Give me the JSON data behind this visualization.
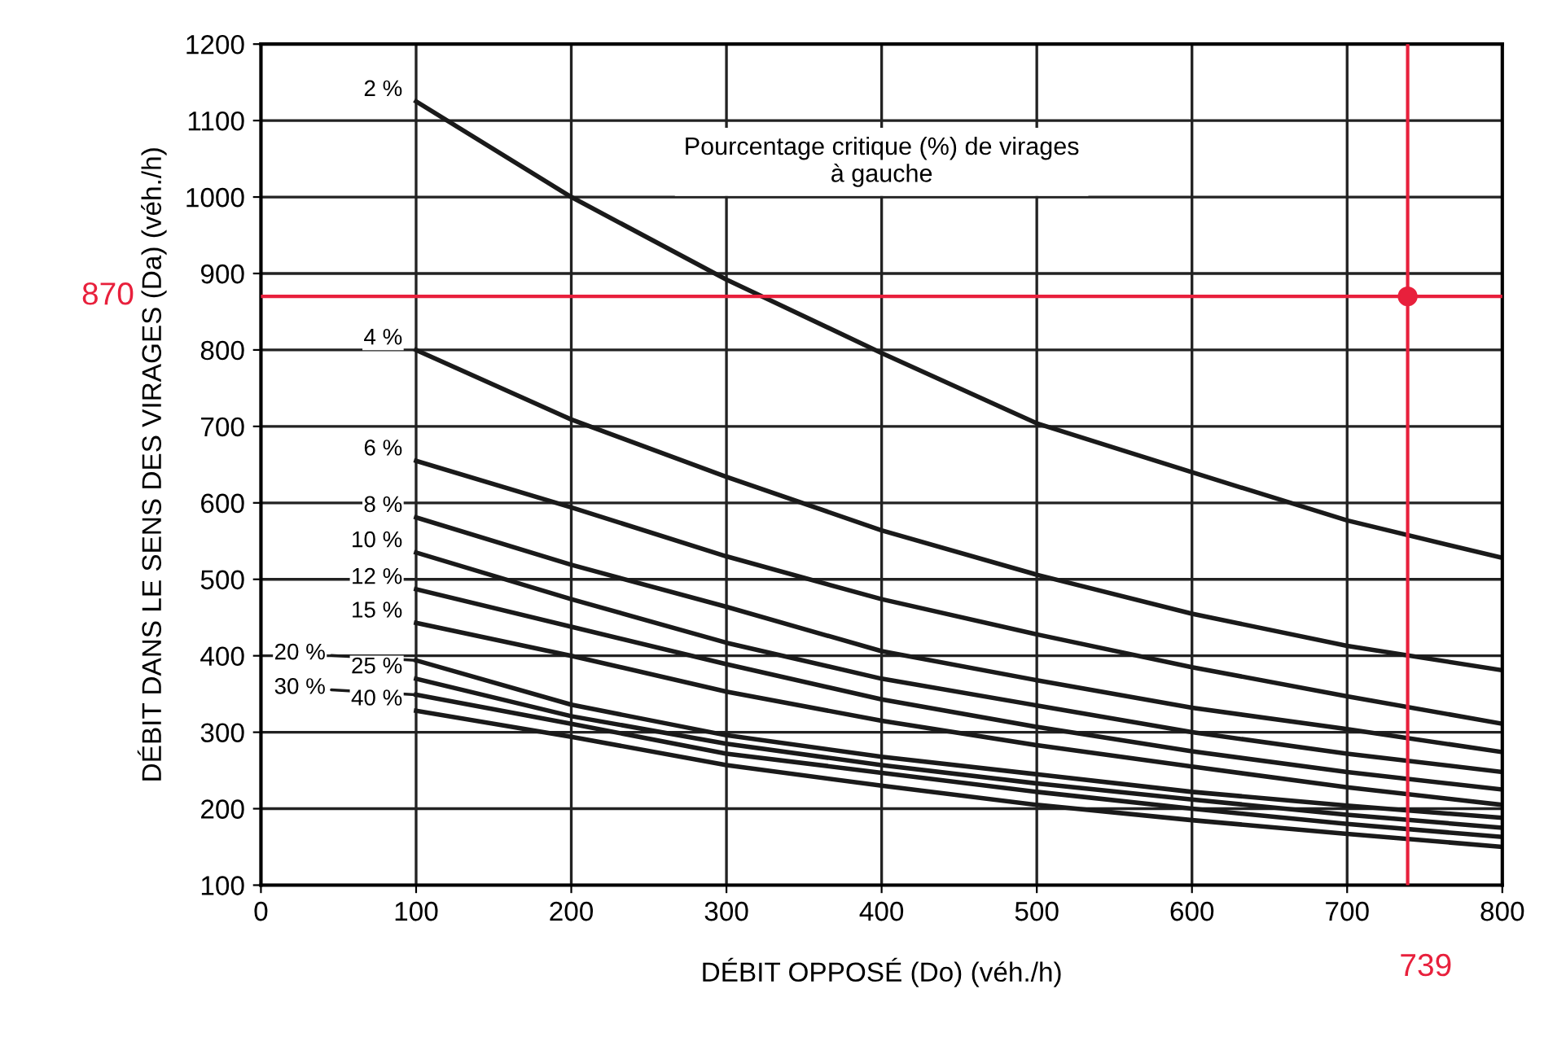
{
  "chart_data": {
    "type": "line",
    "xlabel": "DÉBIT OPPOSÉ (Do) (véh./h)",
    "ylabel": "DÉBIT DANS LE SENS DES VIRAGES (Da) (véh./h)",
    "x": [
      100,
      200,
      300,
      400,
      500,
      600,
      700,
      800
    ],
    "series": [
      {
        "name": "2 %",
        "color": "#1a1a1a",
        "values": [
          1125,
          1000,
          892,
          796,
          704,
          640,
          577,
          528
        ]
      },
      {
        "name": "4 %",
        "color": "#1a1a1a",
        "values": [
          800,
          709,
          634,
          564,
          506,
          455,
          413,
          381
        ]
      },
      {
        "name": "6 %",
        "color": "#1a1a1a",
        "values": [
          655,
          594,
          530,
          474,
          428,
          385,
          347,
          311
        ]
      },
      {
        "name": "8 %",
        "color": "#1a1a1a",
        "values": [
          581,
          519,
          464,
          406,
          368,
          332,
          304,
          274
        ]
      },
      {
        "name": "10 %",
        "color": "#1a1a1a",
        "values": [
          535,
          474,
          417,
          370,
          335,
          300,
          272,
          248
        ]
      },
      {
        "name": "12 %",
        "color": "#1a1a1a",
        "values": [
          487,
          438,
          389,
          343,
          307,
          275,
          248,
          225
        ]
      },
      {
        "name": "15 %",
        "color": "#1a1a1a",
        "values": [
          443,
          400,
          353,
          315,
          283,
          255,
          228,
          205
        ]
      },
      {
        "name": "20 %",
        "color": "#1a1a1a",
        "values": [
          394,
          336,
          296,
          268,
          245,
          222,
          204,
          188
        ]
      },
      {
        "name": "25 %",
        "color": "#1a1a1a",
        "values": [
          370,
          321,
          285,
          257,
          233,
          212,
          192,
          175
        ]
      },
      {
        "name": "30 %",
        "color": "#1a1a1a",
        "values": [
          349,
          311,
          272,
          247,
          222,
          200,
          180,
          163
        ]
      },
      {
        "name": "40 %",
        "color": "#1a1a1a",
        "values": [
          328,
          294,
          257,
          230,
          205,
          185,
          167,
          150
        ]
      },
      {
        "type": "scatter",
        "color": "#e8203c",
        "marker": "circle",
        "x": [
          739
        ],
        "values": [
          870
        ]
      }
    ],
    "annotations": [
      "Pourcentage critique (%) de virages\nà gauche"
    ],
    "ref_lines": [
      {
        "axis": "y",
        "value": 870,
        "label": "870",
        "color": "#e8203c"
      },
      {
        "axis": "x",
        "value": 739,
        "label": "739",
        "color": "#e8203c"
      }
    ],
    "xlim": [
      0,
      800
    ],
    "ylim": [
      100,
      1200
    ],
    "xticks": [
      0,
      100,
      200,
      300,
      400,
      500,
      600,
      700,
      800
    ],
    "yticks": [
      100,
      200,
      300,
      400,
      500,
      600,
      700,
      800,
      900,
      1000,
      1100,
      1200
    ],
    "grid": true,
    "legend": false,
    "marker": "none",
    "line_style": "solid"
  }
}
